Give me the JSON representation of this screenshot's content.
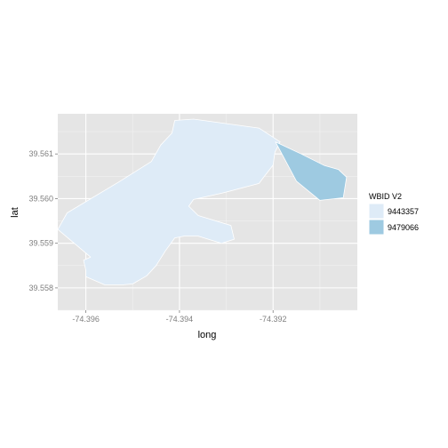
{
  "chart_data": {
    "type": "map",
    "xlabel": "long",
    "ylabel": "lat",
    "xlim": [
      -74.3966,
      -74.3902
    ],
    "ylim": [
      39.5575,
      39.5619
    ],
    "x_ticks": [
      {
        "value": -74.396,
        "label": "-74.396"
      },
      {
        "value": -74.394,
        "label": "-74.394"
      },
      {
        "value": -74.392,
        "label": "-74.392"
      }
    ],
    "y_ticks": [
      {
        "value": 39.558,
        "label": "39.558"
      },
      {
        "value": 39.559,
        "label": "39.559"
      },
      {
        "value": 39.56,
        "label": "39.560"
      },
      {
        "value": 39.561,
        "label": "39.561"
      }
    ],
    "grid": true,
    "legend": {
      "title": "WBID V2",
      "position": "right",
      "entries": [
        {
          "label": "9443357",
          "color": "#deebf7"
        },
        {
          "label": "9479066",
          "color": "#9ecae1"
        }
      ]
    },
    "series": [
      {
        "name": "9443357",
        "color": "#deebf7",
        "points": [
          [
            -74.3941,
            39.56175
          ],
          [
            -74.3937,
            39.56178
          ],
          [
            -74.3923,
            39.56158
          ],
          [
            -74.39185,
            39.56127
          ],
          [
            -74.39196,
            39.56104
          ],
          [
            -74.392,
            39.56075
          ],
          [
            -74.3922,
            39.56048
          ],
          [
            -74.3923,
            39.56034
          ],
          [
            -74.3931,
            39.56012
          ],
          [
            -74.3937,
            39.55998
          ],
          [
            -74.3938,
            39.55983
          ],
          [
            -74.3936,
            39.55962
          ],
          [
            -74.3929,
            39.5594
          ],
          [
            -74.39283,
            39.55909
          ],
          [
            -74.3931,
            39.559
          ],
          [
            -74.3936,
            39.55916
          ],
          [
            -74.3939,
            39.55916
          ],
          [
            -74.3941,
            39.55912
          ],
          [
            -74.3943,
            39.55883
          ],
          [
            -74.3945,
            39.5585
          ],
          [
            -74.3947,
            39.55827
          ],
          [
            -74.395,
            39.55809
          ],
          [
            -74.3952,
            39.55807
          ],
          [
            -74.3956,
            39.55807
          ],
          [
            -74.396,
            39.55825
          ],
          [
            -74.396,
            39.55839
          ],
          [
            -74.39605,
            39.55862
          ],
          [
            -74.3959,
            39.55869
          ],
          [
            -74.3966,
            39.55931
          ],
          [
            -74.3964,
            39.55968
          ],
          [
            -74.3953,
            39.56037
          ],
          [
            -74.3946,
            39.56083
          ],
          [
            -74.3944,
            39.5612
          ],
          [
            -74.39416,
            39.56147
          ]
        ]
      },
      {
        "name": "9479066",
        "color": "#9ecae1",
        "points": [
          [
            -74.39195,
            39.56127
          ],
          [
            -74.3914,
            39.561
          ],
          [
            -74.3909,
            39.56074
          ],
          [
            -74.3906,
            39.56065
          ],
          [
            -74.39043,
            39.56048
          ],
          [
            -74.3905,
            39.56002
          ],
          [
            -74.391,
            39.55996
          ],
          [
            -74.3915,
            39.56039
          ]
        ]
      }
    ]
  }
}
